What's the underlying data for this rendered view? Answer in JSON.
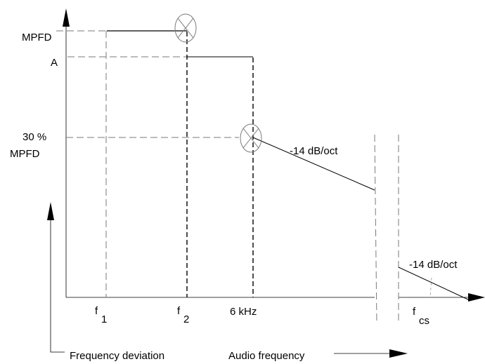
{
  "y_labels": {
    "mpfd": "MPFD",
    "a": "A",
    "pct30_line1": "30 %",
    "pct30_line2": "MPFD"
  },
  "x_labels": {
    "f1_base": "f",
    "f1_sub": "1",
    "f2_base": "f",
    "f2_sub": "2",
    "six_khz": "6 kHz",
    "fcs_base": "f",
    "fcs_sub": "cs"
  },
  "slopes": {
    "main": "-14 dB/oct",
    "tail": "-14 dB/oct"
  },
  "legend": {
    "frequency_deviation": "Frequency deviation",
    "audio_frequency": "Audio frequency"
  },
  "colors": {
    "line": "#000000",
    "guide": "#7a7a7a"
  }
}
